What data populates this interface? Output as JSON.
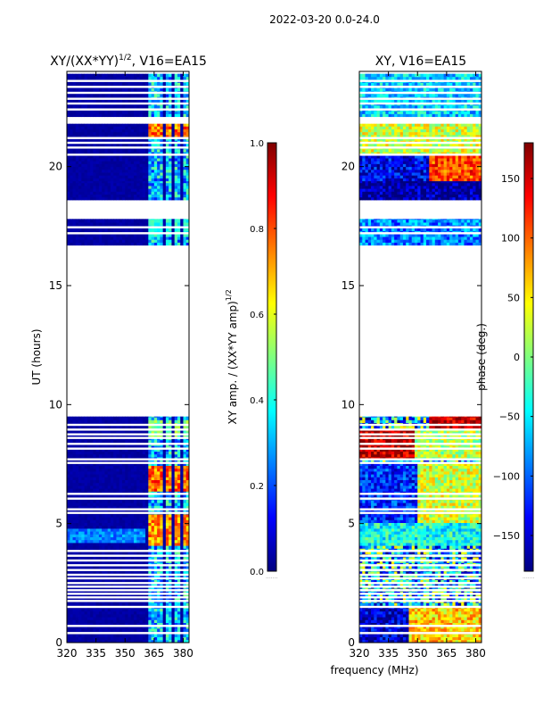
{
  "suptitle": "2022-03-20 0.0-24.0",
  "shared_xlabel": "frequency (MHz)",
  "colors": {
    "jet": [
      "#00007f",
      "#0000ff",
      "#007fff",
      "#00ffff",
      "#7fff7f",
      "#ffff00",
      "#ff7f00",
      "#ff0000",
      "#7f0000"
    ],
    "blank": "#ffffff",
    "axis": "#000000"
  },
  "chart_data": [
    {
      "type": "heatmap",
      "title_main": "XY/(XX*YY)",
      "title_exp": "1/2",
      "title_suffix": ", V16=EA15",
      "xlabel": "frequency (MHz)",
      "ylabel": "UT (hours)",
      "xlim": [
        320,
        383
      ],
      "ylim": [
        0,
        24
      ],
      "xticks": [
        320,
        335,
        350,
        365,
        380
      ],
      "yticks": [
        0,
        5,
        10,
        15,
        20
      ],
      "colorbar": {
        "label": "XY amp. / (XX*YY amp)",
        "label_exp": "1/2",
        "range": [
          0.0,
          1.0
        ],
        "ticks": [
          "0.0",
          "0.2",
          "0.4",
          "0.6",
          "0.8",
          "1.0"
        ],
        "tick_values": [
          0.0,
          0.2,
          0.4,
          0.6,
          0.8,
          1.0
        ]
      },
      "background_value": 0.02,
      "data_blocks_ut": [
        [
          0.0,
          9.5
        ],
        [
          16.7,
          17.8
        ],
        [
          18.6,
          19.4
        ],
        [
          19.4,
          20.5
        ],
        [
          20.5,
          21.8
        ],
        [
          22.1,
          23.9
        ]
      ],
      "flagged_lines_ut": [
        0.4,
        0.7,
        1.5,
        1.75,
        1.9,
        2.05,
        2.2,
        2.35,
        2.5,
        2.7,
        2.85,
        3.05,
        3.25,
        3.45,
        3.65,
        3.85,
        5.45,
        5.6,
        6.05,
        6.25,
        7.55,
        7.7,
        8.15,
        8.35,
        8.6,
        8.75,
        8.95,
        9.15,
        17.2,
        17.45,
        20.5,
        20.8,
        21.0,
        21.2,
        22.4,
        22.65,
        22.85,
        23.1,
        23.35,
        23.6
      ],
      "bright_channels_mhz": [
        [
          361,
          363
        ],
        [
          363.5,
          366
        ],
        [
          366.5,
          369.5
        ],
        [
          370.5,
          374
        ],
        [
          375,
          378
        ],
        [
          379,
          382
        ]
      ],
      "hotspots": [
        {
          "ut": [
            6.3,
            7.4
          ],
          "value": 0.85
        },
        {
          "ut": [
            4.0,
            5.4
          ],
          "value": 0.8
        },
        {
          "ut": [
            21.2,
            21.8
          ],
          "value": 0.85
        },
        {
          "ut": [
            8.6,
            9.3
          ],
          "value": 0.55
        },
        {
          "ut": [
            17.0,
            17.8
          ],
          "value": 0.45
        }
      ],
      "band_structure": {
        "ut": [
          4.2,
          4.7
        ],
        "value": 0.3
      }
    },
    {
      "type": "heatmap",
      "title_main": "XY, V16=EA15",
      "xlabel": "frequency (MHz)",
      "ylabel": "",
      "xlim": [
        320,
        383
      ],
      "ylim": [
        0,
        24
      ],
      "xticks": [
        320,
        335,
        350,
        365,
        380
      ],
      "yticks": [
        0,
        5,
        10,
        15,
        20
      ],
      "colorbar": {
        "label": "phase (deg.)",
        "range": [
          -180,
          180
        ],
        "ticks": [
          "−150",
          "−100",
          "−50",
          "0",
          "50",
          "100",
          "150"
        ],
        "tick_values": [
          -150,
          -100,
          -50,
          0,
          50,
          100,
          150
        ]
      },
      "data_blocks_ut": [
        [
          0.0,
          9.5
        ],
        [
          16.7,
          17.8
        ],
        [
          18.6,
          19.4
        ],
        [
          19.4,
          20.5
        ],
        [
          20.5,
          21.8
        ],
        [
          22.1,
          23.9
        ]
      ],
      "flagged_lines_ut": [
        0.4,
        0.7,
        1.5,
        1.75,
        1.9,
        2.05,
        2.2,
        2.35,
        2.5,
        2.7,
        2.85,
        3.05,
        3.25,
        3.45,
        3.65,
        3.85,
        5.45,
        5.6,
        6.05,
        6.25,
        7.55,
        7.7,
        8.15,
        8.35,
        8.6,
        8.75,
        8.95,
        9.15,
        17.2,
        17.45,
        20.5,
        20.8,
        21.0,
        21.2,
        22.4,
        22.65,
        22.85,
        23.1,
        23.35,
        23.6
      ],
      "phase_regions": [
        {
          "ut": [
            7.6,
            8.9
          ],
          "mhz": [
            320,
            348
          ],
          "value": 160
        },
        {
          "ut": [
            7.6,
            8.9
          ],
          "mhz": [
            348,
            383
          ],
          "value": 20
        },
        {
          "ut": [
            9.0,
            9.5
          ],
          "mhz": [
            355,
            383
          ],
          "value": 160
        },
        {
          "ut": [
            0.0,
            1.5
          ],
          "mhz": [
            320,
            345
          ],
          "value": -150
        },
        {
          "ut": [
            0.0,
            1.5
          ],
          "mhz": [
            345,
            383
          ],
          "value": 60
        },
        {
          "ut": [
            4.0,
            5.0
          ],
          "mhz": [
            320,
            383
          ],
          "value": -40
        },
        {
          "ut": [
            5.0,
            7.5
          ],
          "mhz": [
            320,
            350
          ],
          "value": -120
        },
        {
          "ut": [
            5.0,
            7.5
          ],
          "mhz": [
            350,
            383
          ],
          "value": 30
        },
        {
          "ut": [
            18.6,
            19.4
          ],
          "mhz": [
            320,
            383
          ],
          "value": -170
        },
        {
          "ut": [
            19.4,
            20.5
          ],
          "mhz": [
            320,
            355
          ],
          "value": -140
        },
        {
          "ut": [
            19.4,
            20.5
          ],
          "mhz": [
            355,
            383
          ],
          "value": 110
        },
        {
          "ut": [
            20.5,
            21.8
          ],
          "mhz": [
            320,
            383
          ],
          "value": 30
        },
        {
          "ut": [
            22.1,
            23.9
          ],
          "mhz": [
            320,
            383
          ],
          "value": -60
        },
        {
          "ut": [
            16.7,
            17.8
          ],
          "mhz": [
            320,
            383
          ],
          "value": -90
        }
      ]
    }
  ]
}
